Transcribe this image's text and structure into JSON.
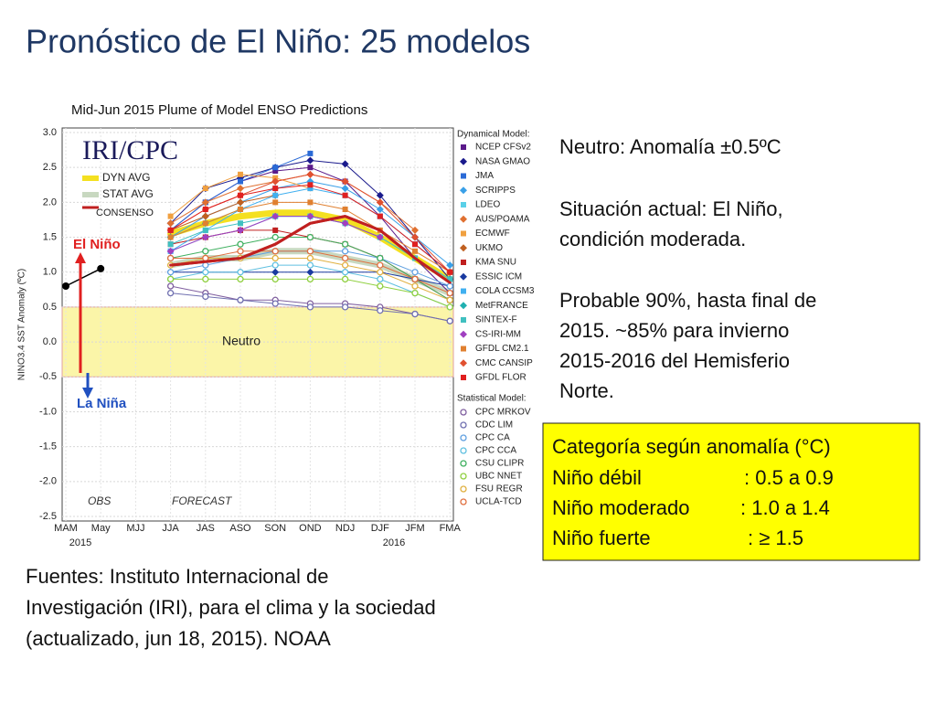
{
  "slide": {
    "title": "Pronóstico de El Niño: 25 modelos",
    "notes": [
      [
        "Neutro: Anomalía ±0.5ºC"
      ],
      [
        "Situación actual: El Niño,",
        "condición moderada."
      ],
      [
        "Probable 90%, hasta final de",
        "2015. ~85% para invierno",
        "2015-2016 del Hemisferio",
        "Norte."
      ]
    ],
    "box": {
      "title": "Categoría según anomalía (°C)",
      "rows": [
        [
          "Niño débil",
          ": 0.5 a 0.9"
        ],
        [
          "Niño moderado",
          ": 1.0 a 1.4"
        ],
        [
          "Niño fuerte",
          ": ≥ 1.5"
        ]
      ]
    },
    "sources": [
      "Fuentes: Instituto Internacional de",
      "Investigación (IRI), para el clima y la sociedad",
      "(actualizado, jun 18, 2015). NOAA"
    ]
  },
  "chart_data": {
    "type": "line",
    "title": "Mid-Jun 2015 Plume of Model ENSO Predictions",
    "y_label": "NINO3.4 SST Anomaly (ºC)",
    "logo": "IRI/CPC",
    "annotations": {
      "el_nino": "El Niño",
      "la_nina": "La Niña",
      "neutral": "Neutro",
      "forecast": "FORECAST",
      "year1": "2015",
      "year2": "2016"
    },
    "neutral_band": [
      -0.5,
      0.5
    ],
    "categories": [
      "MAM",
      "May",
      "MJJ",
      "JJA",
      "JAS",
      "ASO",
      "SON",
      "OND",
      "NDJ",
      "DJF",
      "JFM",
      "FMA"
    ],
    "ylim": [
      -2.5,
      3.0
    ],
    "yticks": [
      {
        "value": 3,
        "label": "3.0"
      },
      2.5,
      {
        "value": 2,
        "label": "2.0"
      },
      1.5,
      {
        "value": 1,
        "label": "1.0"
      },
      0.5,
      {
        "value": 0,
        "label": "0.0"
      },
      -0.5,
      {
        "value": -1,
        "label": "-1.0"
      },
      -1.5,
      {
        "value": -2,
        "label": "-2.0"
      },
      -2.5
    ],
    "obs": {
      "name": "OBS",
      "color": "#000000",
      "values": [
        0.8,
        1.05,
        null,
        null,
        null,
        null,
        null,
        null,
        null,
        null,
        null,
        null
      ]
    },
    "dynamical_label": "Dynamical Model:",
    "dynamical": [
      {
        "name": "NCEP CFSv2",
        "color": "#5b1a8a",
        "values": [
          null,
          null,
          null,
          1.6,
          2.0,
          2.3,
          2.45,
          2.5,
          2.3,
          1.8,
          1.2,
          0.7
        ]
      },
      {
        "name": "NASA GMAO",
        "color": "#1a1a8c",
        "values": [
          null,
          null,
          null,
          1.7,
          2.2,
          2.35,
          2.5,
          2.6,
          2.55,
          2.1,
          1.5,
          0.9
        ]
      },
      {
        "name": "JMA",
        "color": "#2a6ad6",
        "values": [
          null,
          null,
          null,
          1.6,
          2.0,
          2.3,
          2.5,
          2.7,
          null,
          null,
          null,
          null
        ]
      },
      {
        "name": "SCRIPPS",
        "color": "#3aa0e8",
        "values": [
          null,
          null,
          null,
          1.5,
          1.8,
          2.0,
          2.2,
          2.3,
          2.2,
          1.9,
          1.5,
          1.1
        ]
      },
      {
        "name": "LDEO",
        "color": "#5ad0e8",
        "values": [
          null,
          null,
          null,
          1.3,
          1.5,
          1.6,
          1.8,
          1.8,
          1.7,
          1.5,
          1.2,
          0.9
        ]
      },
      {
        "name": "AUS/POAMA",
        "color": "#e07030",
        "values": [
          null,
          null,
          null,
          1.7,
          2.0,
          2.2,
          2.3,
          2.4,
          2.3,
          2.0,
          1.6,
          null
        ]
      },
      {
        "name": "ECMWF",
        "color": "#f0a040",
        "values": [
          null,
          null,
          null,
          1.8,
          2.2,
          2.4,
          2.35,
          2.2,
          null,
          null,
          null,
          null
        ]
      },
      {
        "name": "UKMO",
        "color": "#c06020",
        "values": [
          null,
          null,
          null,
          1.6,
          1.8,
          2.0,
          2.1,
          null,
          null,
          null,
          null,
          null
        ]
      },
      {
        "name": "KMA SNU",
        "color": "#c02020",
        "values": [
          null,
          null,
          null,
          1.4,
          1.5,
          1.6,
          1.6,
          1.5,
          1.4,
          1.2,
          0.9,
          0.6
        ]
      },
      {
        "name": "ESSIC ICM",
        "color": "#1a3aa0",
        "values": [
          null,
          null,
          null,
          1.0,
          1.0,
          1.0,
          1.0,
          1.0,
          1.0,
          1.0,
          0.9,
          0.8
        ]
      },
      {
        "name": "COLA CCSM3",
        "color": "#40b0f0",
        "values": [
          null,
          null,
          null,
          1.3,
          1.6,
          1.9,
          2.1,
          2.2,
          2.1,
          1.8,
          1.4,
          1.0
        ]
      },
      {
        "name": "MetFRANCE",
        "color": "#20b0b0",
        "values": [
          null,
          null,
          null,
          1.5,
          1.7,
          1.9,
          null,
          null,
          null,
          null,
          null,
          null
        ]
      },
      {
        "name": "SINTEX-F",
        "color": "#40c0c0",
        "values": [
          null,
          null,
          null,
          1.4,
          1.6,
          1.7,
          1.8,
          1.8,
          1.7,
          1.5,
          1.2,
          0.9
        ]
      },
      {
        "name": "CS-IRI-MM",
        "color": "#a040c0",
        "values": [
          null,
          null,
          null,
          1.3,
          1.5,
          1.6,
          1.8,
          1.8,
          1.7,
          1.5,
          null,
          null
        ]
      },
      {
        "name": "GFDL CM2.1",
        "color": "#e08030",
        "values": [
          null,
          null,
          null,
          1.5,
          1.7,
          1.9,
          2.0,
          2.0,
          1.9,
          1.6,
          1.3,
          1.0
        ]
      },
      {
        "name": "CMC CANSIP",
        "color": "#e05030",
        "values": [
          null,
          null,
          null,
          1.6,
          1.9,
          2.1,
          2.3,
          2.4,
          2.3,
          2.0,
          1.5,
          1.0
        ]
      },
      {
        "name": "GFDL FLOR",
        "color": "#e02020",
        "values": [
          null,
          null,
          null,
          1.6,
          1.9,
          2.1,
          2.2,
          2.25,
          2.1,
          1.8,
          1.4,
          1.0
        ]
      }
    ],
    "statistical_label": "Statistical Model:",
    "statistical": [
      {
        "name": "CPC MRKOV",
        "color": "#8060a0",
        "values": [
          null,
          null,
          null,
          0.8,
          0.7,
          0.6,
          0.6,
          0.55,
          0.55,
          0.5,
          0.4,
          0.3
        ]
      },
      {
        "name": "CDC LIM",
        "color": "#7070b0",
        "values": [
          null,
          null,
          null,
          0.7,
          0.65,
          0.6,
          0.55,
          0.5,
          0.5,
          0.45,
          0.4,
          0.3
        ]
      },
      {
        "name": "CPC CA",
        "color": "#60a0e0",
        "values": [
          null,
          null,
          null,
          1.0,
          1.1,
          1.2,
          1.3,
          1.3,
          1.3,
          1.2,
          1.0,
          0.8
        ]
      },
      {
        "name": "CPC CCA",
        "color": "#60c0e0",
        "values": [
          null,
          null,
          null,
          0.9,
          1.0,
          1.0,
          1.1,
          1.1,
          1.0,
          0.9,
          0.7,
          0.5
        ]
      },
      {
        "name": "CSU CLIPR",
        "color": "#40b060",
        "values": [
          null,
          null,
          null,
          1.2,
          1.3,
          1.4,
          1.5,
          1.5,
          1.4,
          1.2,
          0.9,
          0.6
        ]
      },
      {
        "name": "UBC NNET",
        "color": "#90d040",
        "values": [
          null,
          null,
          null,
          0.9,
          0.9,
          0.9,
          0.9,
          0.9,
          0.9,
          0.8,
          0.7,
          0.5
        ]
      },
      {
        "name": "FSU REGR",
        "color": "#e0b040",
        "values": [
          null,
          null,
          null,
          1.1,
          1.2,
          1.2,
          1.2,
          1.2,
          1.1,
          1.0,
          0.8,
          0.6
        ]
      },
      {
        "name": "UCLA-TCD",
        "color": "#e07040",
        "values": [
          null,
          null,
          null,
          1.2,
          1.2,
          1.3,
          1.3,
          1.3,
          1.2,
          1.1,
          0.9,
          0.7
        ]
      }
    ],
    "averages": [
      {
        "name": "DYN AVG",
        "color": "#f4e020",
        "values": [
          null,
          null,
          null,
          1.55,
          1.7,
          1.8,
          1.85,
          1.85,
          1.75,
          1.5,
          1.2,
          0.9
        ]
      },
      {
        "name": "STAT AVG",
        "color": "#c8d8c0",
        "values": [
          null,
          null,
          null,
          1.1,
          1.2,
          1.2,
          1.3,
          1.3,
          1.2,
          1.1,
          0.9,
          0.7
        ]
      },
      {
        "name": "CONSENSO",
        "color": "#c02020",
        "values": [
          null,
          null,
          null,
          1.1,
          1.15,
          1.2,
          1.4,
          1.7,
          1.8,
          1.6,
          1.2,
          0.85
        ]
      }
    ]
  }
}
